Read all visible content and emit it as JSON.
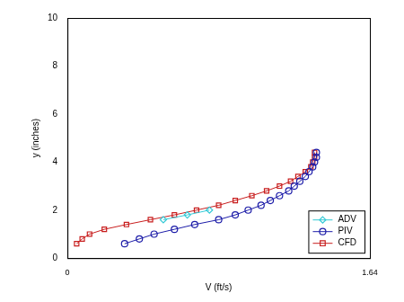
{
  "chart_data": {
    "type": "scatter",
    "xlabel": "V (ft/s)",
    "ylabel": "y (inches)",
    "xlim": [
      0,
      1.64
    ],
    "xticks": [
      0,
      1.64
    ],
    "ylim": [
      0,
      10
    ],
    "yticks": [
      0,
      2,
      4,
      6,
      8,
      10
    ],
    "grid": false,
    "legend": "lower right",
    "series": [
      {
        "name": "ADV",
        "color": "#33c9d6",
        "marker": "diamond",
        "line_style": "solid",
        "x": [
          0.52,
          0.65,
          0.77
        ],
        "values": [
          1.6,
          1.8,
          2.0
        ]
      },
      {
        "name": "PIV",
        "color": "#1c1ca8",
        "marker": "circle",
        "line_style": "solid",
        "x": [
          0.31,
          0.39,
          0.47,
          0.58,
          0.69,
          0.82,
          0.91,
          0.98,
          1.05,
          1.1,
          1.15,
          1.2,
          1.23,
          1.26,
          1.29,
          1.31,
          1.33,
          1.34,
          1.35,
          1.35
        ],
        "values": [
          0.6,
          0.8,
          1.0,
          1.2,
          1.4,
          1.6,
          1.8,
          2.0,
          2.2,
          2.4,
          2.6,
          2.8,
          3.0,
          3.2,
          3.4,
          3.6,
          3.8,
          4.0,
          4.2,
          4.4
        ]
      },
      {
        "name": "CFD",
        "color": "#c81e1e",
        "marker": "square",
        "line_style": "solid",
        "x": [
          0.05,
          0.08,
          0.12,
          0.2,
          0.32,
          0.45,
          0.58,
          0.7,
          0.82,
          0.91,
          1.0,
          1.08,
          1.15,
          1.21,
          1.25,
          1.29,
          1.32,
          1.33,
          1.34,
          1.34
        ],
        "values": [
          0.6,
          0.8,
          1.0,
          1.2,
          1.4,
          1.6,
          1.8,
          2.0,
          2.2,
          2.4,
          2.6,
          2.8,
          3.0,
          3.2,
          3.4,
          3.6,
          3.8,
          4.0,
          4.2,
          4.4
        ]
      }
    ]
  }
}
